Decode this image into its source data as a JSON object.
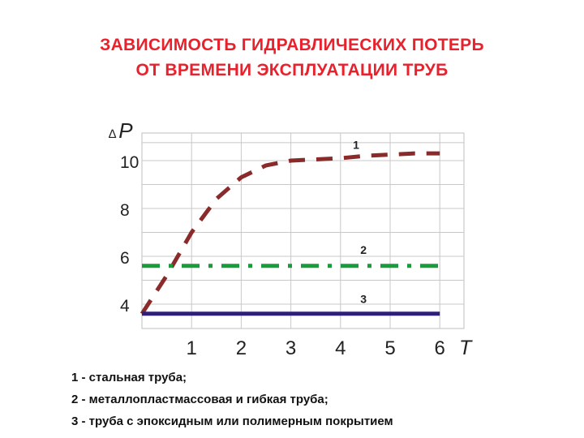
{
  "title_lines": [
    "ЗАВИСИМОСТЬ ГИДРАВЛИЧЕСКИХ ПОТЕРЬ",
    "ОТ ВРЕМЕНИ ЭКСПЛУАТАЦИИ ТРУБ"
  ],
  "legend": [
    "1 - стальная труба;",
    "2 - металлопластмассовая и гибкая труба;",
    "3 - труба с эпоксидным или полимерным покрытием"
  ],
  "chart_data": {
    "type": "line",
    "title": "ЗАВИСИМОСТЬ ГИДРАВЛИЧЕСКИХ ПОТЕРЬ ОТ ВРЕМЕНИ ЭКСПЛУАТАЦИИ ТРУБ",
    "xlabel": "T",
    "ylabel": "P",
    "ylabel_prefix": "∆",
    "xlim": [
      0,
      6.2
    ],
    "ylim": [
      3.3,
      11
    ],
    "x_ticks": [
      1,
      2,
      3,
      4,
      5,
      6
    ],
    "y_ticks": [
      4,
      6,
      8,
      10
    ],
    "grid": true,
    "series": [
      {
        "name": "1",
        "color": "#8b2a2a",
        "style": "dashed",
        "x": [
          0,
          0.5,
          1,
          1.5,
          2,
          2.5,
          3,
          3.5,
          4,
          4.5,
          5,
          5.5,
          6
        ],
        "y": [
          3.6,
          5.2,
          7.0,
          8.4,
          9.3,
          9.8,
          10.0,
          10.05,
          10.1,
          10.2,
          10.25,
          10.3,
          10.3
        ]
      },
      {
        "name": "2",
        "color": "#1a9b3c",
        "style": "dashdot",
        "x": [
          0,
          6
        ],
        "y": [
          5.6,
          5.6
        ]
      },
      {
        "name": "3",
        "color": "#2e1f78",
        "style": "solid",
        "x": [
          0,
          6
        ],
        "y": [
          3.6,
          3.6
        ]
      }
    ],
    "line_labels": [
      {
        "text": "1",
        "x": 4.25,
        "y": 10.5
      },
      {
        "text": "2",
        "x": 4.4,
        "y": 6.1
      },
      {
        "text": "3",
        "x": 4.4,
        "y": 4.05
      }
    ]
  }
}
